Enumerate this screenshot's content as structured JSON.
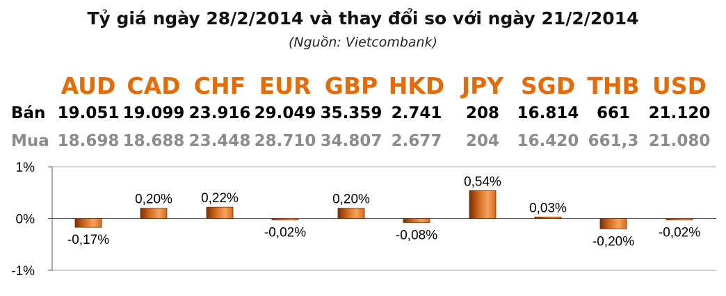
{
  "header": {
    "title": "Tỷ giá ngày 28/2/2014 và thay đổi so với ngày 21/2/2014",
    "source": "(Nguồn: Vietcombank)"
  },
  "table": {
    "currencies": [
      "AUD",
      "CAD",
      "CHF",
      "EUR",
      "GBP",
      "HKD",
      "JPY",
      "SGD",
      "THB",
      "USD"
    ],
    "sell_label": "Bán",
    "sell": [
      "19.051",
      "19.099",
      "23.916",
      "29.049",
      "35.359",
      "2.741",
      "208",
      "16.814",
      "661",
      "21.120"
    ],
    "buy_label": "Mua",
    "buy": [
      "18.698",
      "18.688",
      "23.448",
      "28.710",
      "34.807",
      "2.677",
      "204",
      "16.420",
      "661,3",
      "21.080"
    ]
  },
  "colors": {
    "accent": "#e36c09",
    "bar": "#d2691e",
    "bar_dark": "#7a2e05",
    "bar_light": "#f4a460",
    "buy_text": "#8c8c8c"
  },
  "chart_data": {
    "type": "bar",
    "categories": [
      "AUD",
      "CAD",
      "CHF",
      "EUR",
      "GBP",
      "HKD",
      "JPY",
      "SGD",
      "THB",
      "USD"
    ],
    "values": [
      -0.17,
      0.2,
      0.22,
      -0.02,
      0.2,
      -0.08,
      0.54,
      0.03,
      -0.2,
      -0.02
    ],
    "data_labels": [
      "-0,17%",
      "0,20%",
      "0,22%",
      "-0,02%",
      "0,20%",
      "-0,08%",
      "0,54%",
      "0,03%",
      "-0,20%",
      "-0,02%"
    ],
    "ylim": [
      -1,
      1
    ],
    "yticks": [
      1,
      0,
      -1
    ],
    "ytick_labels": [
      "1%",
      "0%",
      "-1%"
    ],
    "grid": true
  }
}
